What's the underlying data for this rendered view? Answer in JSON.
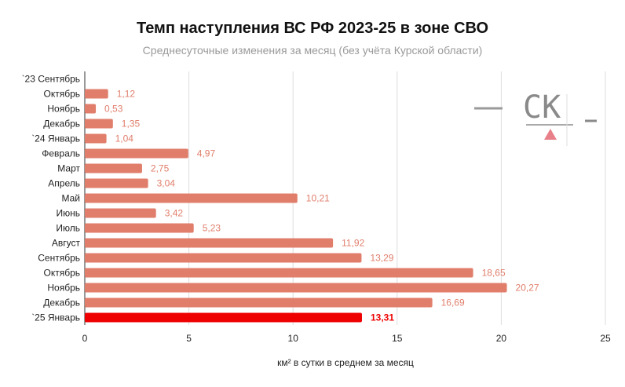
{
  "chart_data": {
    "type": "bar",
    "orientation": "horizontal",
    "title": "Темп наступления ВС РФ 2023-25 в зоне СВО",
    "subtitle": "Среднесуточные изменения за месяц (без учёта Курской области)",
    "xlabel": "км² в сутки в среднем за месяц",
    "ylabel": "",
    "xlim": [
      0,
      25
    ],
    "xticks": [
      "0",
      "5",
      "10",
      "15",
      "20",
      "25"
    ],
    "grid": true,
    "categories": [
      "`23 Сентябрь",
      "Октябрь",
      "Ноябрь",
      "Декабрь",
      "`24 Январь",
      "Февраль",
      "Март",
      "Апрель",
      "Май",
      "Июнь",
      "Июль",
      "Август",
      "Сентябрь",
      "Октябрь",
      "Ноябрь",
      "Декабрь",
      "`25 Январь"
    ],
    "values": [
      null,
      1.12,
      0.53,
      1.35,
      1.04,
      4.97,
      2.75,
      3.04,
      10.21,
      3.42,
      5.23,
      11.92,
      13.29,
      18.65,
      20.27,
      16.69,
      13.31
    ],
    "value_labels": [
      "",
      "1,12",
      "0,53",
      "1,35",
      "1,04",
      "4,97",
      "2,75",
      "3,04",
      "10,21",
      "3,42",
      "5,23",
      "11,92",
      "13,29",
      "18,65",
      "20,27",
      "16,69",
      "13,31"
    ],
    "highlight_index": 16,
    "colors": {
      "bar": "#e07e6b",
      "highlight": "#ee0000",
      "label": "#e07e6b",
      "grid": "#dddddd"
    }
  },
  "watermark": {
    "text": "СК",
    "color": "#8a8a8a",
    "accent": "#e8808a"
  }
}
